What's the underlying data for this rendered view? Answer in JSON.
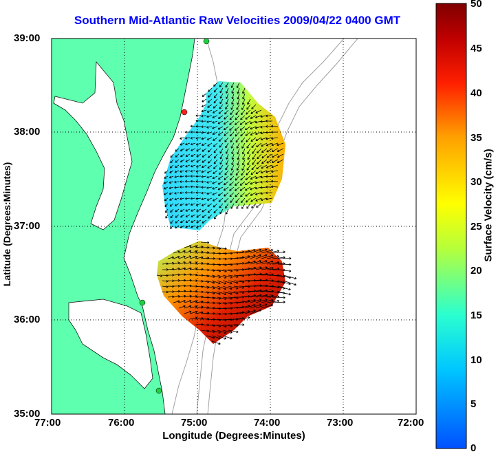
{
  "title": "Southern Mid-Atlantic Raw Velocities 2009/04/22 0400 GMT",
  "x_axis": {
    "label": "Longitude (Degrees:Minutes)",
    "ticks": [
      "77:00",
      "76:00",
      "75:00",
      "74:00",
      "73:00",
      "72:00"
    ]
  },
  "y_axis": {
    "label": "Latitude (Degrees:Minutes)",
    "ticks": [
      "39:00",
      "38:00",
      "37:00",
      "36:00",
      "35:00"
    ]
  },
  "colorbar": {
    "label": "Surface Velocity (cm/s)",
    "ticks": [
      "50",
      "45",
      "40",
      "35",
      "30",
      "25",
      "20",
      "15",
      "10",
      "5",
      "0"
    ],
    "min": 0,
    "max": 50,
    "colors": [
      "#0050ff",
      "#00c8ff",
      "#2affd0",
      "#b6ff3a",
      "#ffff00",
      "#ffa000",
      "#ff2000",
      "#c00000",
      "#800000"
    ]
  },
  "colors": {
    "land": "#5effae",
    "ocean": "#ffffff",
    "title": "#0000ff",
    "bathymetry": "#a0a0a0"
  },
  "grid": true,
  "markers": [
    {
      "name": "station-1",
      "color": "#ff2020"
    },
    {
      "name": "station-2",
      "color": "#20d040"
    },
    {
      "name": "station-3",
      "color": "#20d040"
    },
    {
      "name": "station-4",
      "color": "#20d040"
    }
  ]
}
